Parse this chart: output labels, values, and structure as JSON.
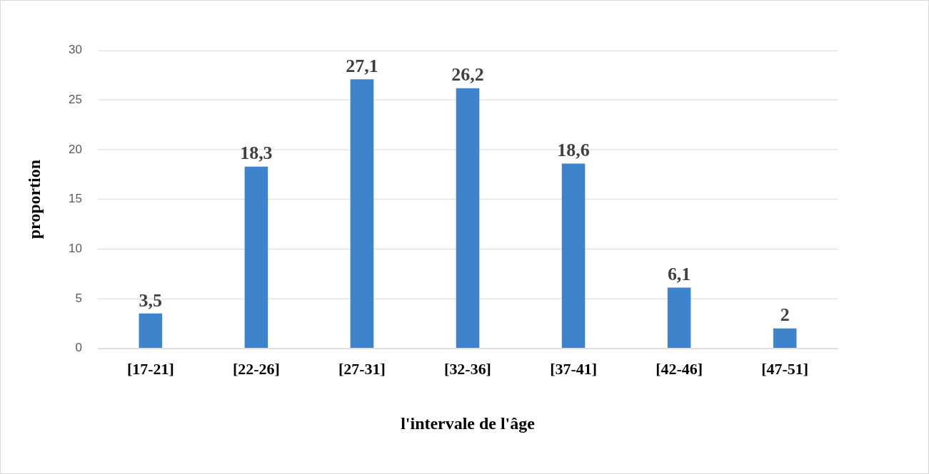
{
  "chart_data": {
    "type": "bar",
    "xlabel": "l'intervale de l'âge",
    "ylabel": "proportion",
    "categories": [
      "[17-21]",
      "[22-26]",
      "[27-31]",
      "[32-36]",
      "[37-41]",
      "[42-46]",
      "[47-51]"
    ],
    "values": [
      3.5,
      18.3,
      27.1,
      26.2,
      18.6,
      6.1,
      2
    ],
    "value_labels": [
      "3,5",
      "18,3",
      "27,1",
      "26,2",
      "18,6",
      "6,1",
      "2"
    ],
    "color": "#3d84cc",
    "ylim": [
      0,
      30
    ],
    "yticks": [
      0,
      5,
      10,
      15,
      20,
      25,
      30
    ],
    "grid": "y"
  }
}
